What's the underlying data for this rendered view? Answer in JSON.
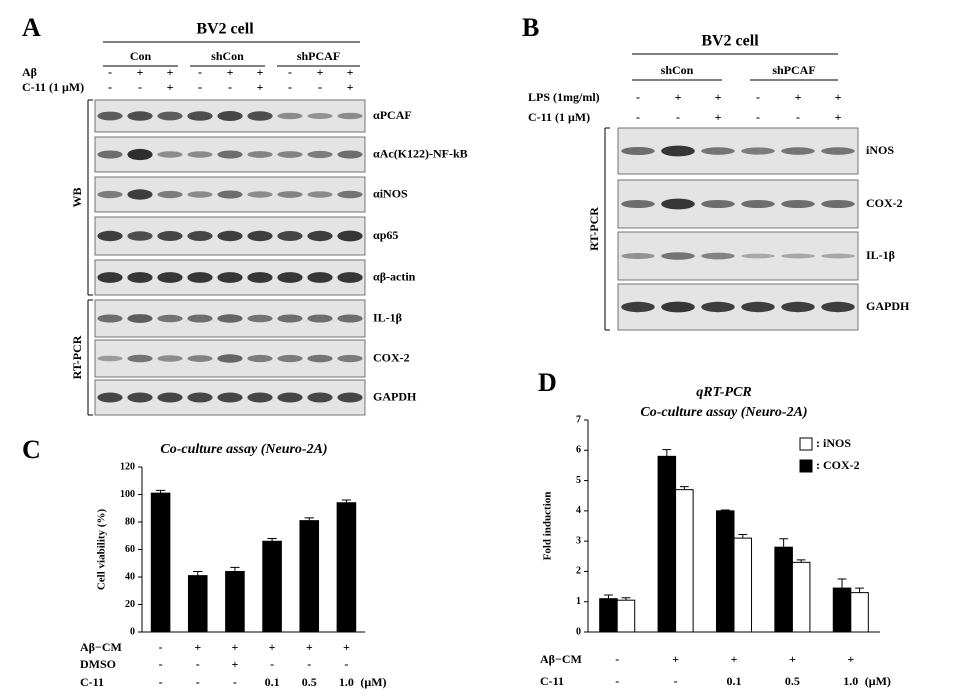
{
  "panel_a": {
    "letter": "A",
    "title": "BV2 cell",
    "groups": [
      "Con",
      "shCon",
      "shPCAF"
    ],
    "treatments": [
      {
        "label": "Aβ",
        "signs": [
          "-",
          "+",
          "+",
          "-",
          "+",
          "+",
          "-",
          "+",
          "+"
        ]
      },
      {
        "label": "C-11 (1 μM)",
        "signs": [
          "-",
          "-",
          "+",
          "-",
          "-",
          "+",
          "-",
          "-",
          "+"
        ]
      }
    ],
    "sections": [
      {
        "label": "WB",
        "bands": [
          "αPCAF",
          "αAc(K122)-NF-kB",
          "αiNOS",
          "αp65",
          "αβ-actin"
        ]
      },
      {
        "label": "RT-PCR",
        "bands": [
          "IL-1β",
          "COX-2",
          "GAPDH"
        ]
      }
    ]
  },
  "panel_b": {
    "letter": "B",
    "title": "BV2 cell",
    "groups": [
      "shCon",
      "shPCAF"
    ],
    "treatments": [
      {
        "label": "LPS (1mg/ml)",
        "signs": [
          "-",
          "+",
          "+",
          "-",
          "+",
          "+"
        ]
      },
      {
        "label": "C-11 (1 μM)",
        "signs": [
          "-",
          "-",
          "+",
          "-",
          "-",
          "+"
        ]
      }
    ],
    "sections": [
      {
        "label": "RT-PCR",
        "bands": [
          "iNOS",
          "COX-2",
          "IL-1β",
          "GAPDH"
        ]
      }
    ]
  },
  "chart_data": [
    {
      "type": "bar",
      "label": "C",
      "title": "Co-culture assay (Neuro-2A)",
      "y_label": "Cell viability (%)",
      "values": [
        101,
        41,
        44,
        66,
        81,
        94
      ],
      "errors": [
        2,
        3,
        3,
        2,
        2,
        2
      ],
      "color": "#000000",
      "ylim": [
        0,
        120
      ],
      "yticks": [
        0,
        20,
        40,
        60,
        80,
        100,
        120
      ],
      "conditions": [
        {
          "label": "Aβ−CM",
          "values": [
            "-",
            "+",
            "+",
            "+",
            "+",
            "+"
          ]
        },
        {
          "label": "DMSO",
          "values": [
            "-",
            "-",
            "+",
            "-",
            "-",
            "-"
          ]
        },
        {
          "label": "C-11",
          "values": [
            "-",
            "-",
            "-",
            "0.1",
            "0.5",
            "1.0"
          ]
        }
      ],
      "unit": "(μM)"
    },
    {
      "type": "grouped_bar",
      "label": "D",
      "title": "qRT-PCR",
      "subtitle": "Co-culture assay (Neuro-2A)",
      "y_label": "Fold induction",
      "series": [
        {
          "name": ": iNOS",
          "color": "#ffffff",
          "values": [
            1.05,
            4.7,
            3.1,
            2.3,
            1.3
          ],
          "errors": [
            0.08,
            0.1,
            0.12,
            0.08,
            0.15
          ]
        },
        {
          "name": ": COX-2",
          "color": "#000000",
          "values": [
            1.1,
            5.8,
            4.0,
            2.8,
            1.45
          ],
          "errors": [
            0.12,
            0.22,
            0.03,
            0.28,
            0.3
          ]
        }
      ],
      "ylim": [
        0,
        7
      ],
      "yticks": [
        0,
        1,
        2,
        3,
        4,
        5,
        6,
        7
      ],
      "conditions": [
        {
          "label": "Aβ−CM",
          "values": [
            "-",
            "+",
            "+",
            "+",
            "+"
          ]
        },
        {
          "label": "C-11",
          "values": [
            "-",
            "-",
            "0.1",
            "0.5",
            "1.0"
          ]
        }
      ],
      "unit": "(μM)"
    }
  ]
}
